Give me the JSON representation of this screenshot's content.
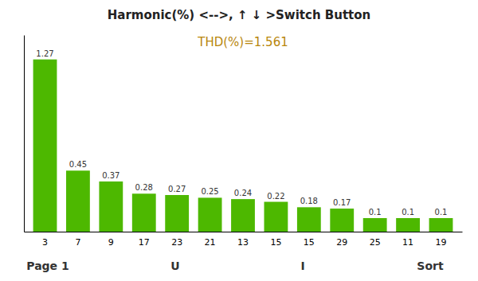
{
  "chart_data": {
    "type": "bar",
    "title": "Harmonic(%) <-->,  ↑ ↓ >Switch Button",
    "annotations": [
      "THD(%)=1.561",
      "Page 1",
      "U",
      "I",
      "Sort"
    ],
    "categories": [
      "3",
      "7",
      "9",
      "17",
      "23",
      "21",
      "13",
      "15",
      "15",
      "29",
      "25",
      "11",
      "19"
    ],
    "values": [
      1.27,
      0.45,
      0.37,
      0.28,
      0.27,
      0.25,
      0.24,
      0.22,
      0.18,
      0.17,
      0.1,
      0.1,
      0.1
    ],
    "color": "#4db800",
    "ylim": [
      0,
      1.45
    ],
    "yticks": [],
    "tick_labels": "x",
    "data_labels": true,
    "grid": false
  }
}
